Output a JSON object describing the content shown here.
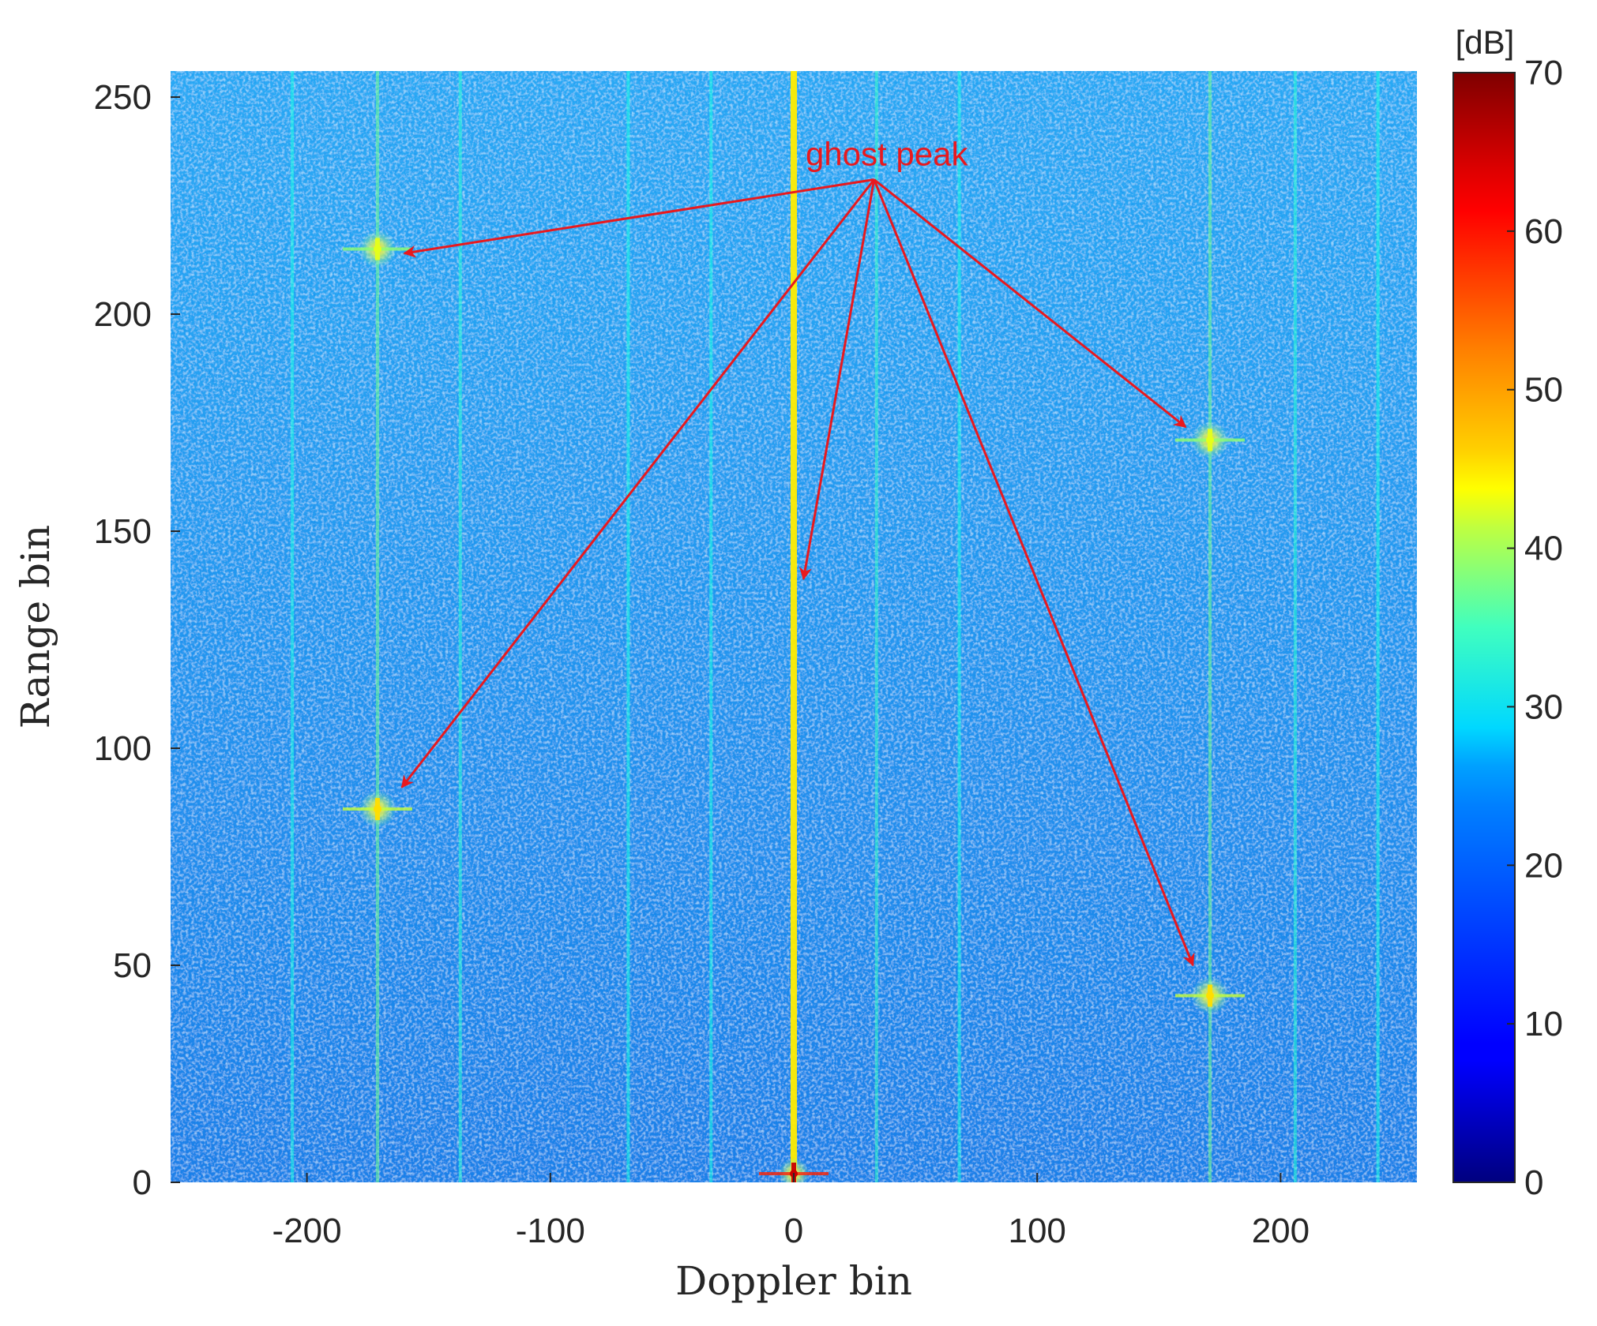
{
  "chart_data": {
    "type": "heatmap",
    "title": "",
    "xlabel": "Doppler bin",
    "ylabel": "Range bin",
    "xlim": [
      -256,
      256
    ],
    "ylim": [
      0,
      256
    ],
    "xticks": [
      -200,
      -100,
      0,
      100,
      200
    ],
    "yticks": [
      0,
      50,
      100,
      150,
      200,
      250
    ],
    "colormap": "jet",
    "colorbar": {
      "label": "[dB]",
      "range": [
        0,
        70
      ],
      "ticks": [
        0,
        10,
        20,
        30,
        40,
        50,
        60,
        70
      ]
    },
    "background_level_db": 22,
    "stripes": [
      {
        "doppler": 0,
        "level_db": 45
      },
      {
        "doppler": -171,
        "level_db": 34
      },
      {
        "doppler": 171,
        "level_db": 34
      },
      {
        "doppler": 34,
        "level_db": 30
      },
      {
        "doppler": -137,
        "level_db": 29
      },
      {
        "doppler": 206,
        "level_db": 29
      },
      {
        "doppler": -206,
        "level_db": 28
      },
      {
        "doppler": -34,
        "level_db": 28
      },
      {
        "doppler": 68,
        "level_db": 28
      },
      {
        "doppler": -68,
        "level_db": 28
      },
      {
        "doppler": 240,
        "level_db": 28
      }
    ],
    "peaks": [
      {
        "doppler": 0,
        "range": 2,
        "level_db": 65
      },
      {
        "doppler": -171,
        "range": 215,
        "level_db": 42
      },
      {
        "doppler": -171,
        "range": 86,
        "level_db": 46
      },
      {
        "doppler": 171,
        "range": 171,
        "level_db": 42
      },
      {
        "doppler": 171,
        "range": 43,
        "level_db": 46
      }
    ],
    "annotation": {
      "text": "ghost peak",
      "origin": {
        "doppler": 33,
        "range": 231
      },
      "arrow_targets": [
        {
          "doppler": -160,
          "range": 214
        },
        {
          "doppler": 4,
          "range": 139
        },
        {
          "doppler": 161,
          "range": 174
        },
        {
          "doppler": -161,
          "range": 91
        },
        {
          "doppler": 164,
          "range": 50
        }
      ]
    }
  },
  "colors": {
    "annotation": "#e8191e",
    "axis_text": "#262626"
  }
}
